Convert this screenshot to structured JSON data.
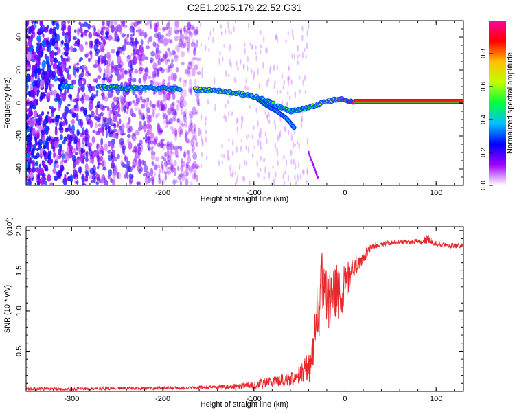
{
  "title": "C2E1.2025.179.22.52.G31",
  "chart_data": [
    {
      "type": "heatmap",
      "xlabel": "Height of straight line (km)",
      "ylabel": "Frequency (Hz)",
      "xlim": [
        -350,
        130
      ],
      "ylim": [
        -50,
        50
      ],
      "xticks": [
        -300,
        -200,
        -100,
        0,
        100
      ],
      "yticks": [
        -40,
        -20,
        0,
        20,
        40
      ],
      "colorbar": {
        "label": "Normalized spectral amplitude",
        "range": [
          0,
          1
        ],
        "ticks": [
          "0.0",
          "0.2",
          "0.4",
          "0.6",
          "0.8"
        ],
        "colors": [
          "#ffffff",
          "#a000ff",
          "#0000ff",
          "#00c0ff",
          "#00ff40",
          "#c0ff00",
          "#ffc000",
          "#ff0000",
          "#ff00a0"
        ]
      },
      "ridge": {
        "x": [
          -310,
          -300,
          -270,
          -240,
          -210,
          -180,
          -160,
          -140,
          -120,
          -100,
          -85,
          -70,
          -60,
          -50,
          -40,
          -30,
          -20,
          -10,
          0,
          10,
          130
        ],
        "y": [
          10,
          10,
          9.5,
          9,
          9,
          8.5,
          8,
          7.5,
          6,
          4,
          1,
          -3,
          -5,
          -4,
          -3,
          -1,
          1,
          2,
          2,
          1,
          1
        ],
        "amplitude": [
          0.45,
          0.4,
          0.6,
          0.55,
          0.5,
          0.45,
          0.6,
          0.55,
          0.55,
          0.5,
          0.5,
          0.5,
          0.45,
          0.5,
          0.55,
          0.6,
          0.7,
          0.7,
          0.85,
          0.95,
          0.95
        ]
      },
      "branch": {
        "x": [
          -95,
          -85,
          -75,
          -65,
          -60,
          -56
        ],
        "y": [
          2,
          -2,
          -5,
          -9,
          -12,
          -15
        ],
        "amplitude": [
          0.5,
          0.5,
          0.45,
          0.4,
          0.4,
          0.35
        ]
      },
      "faint_segment": {
        "x": [
          -40,
          -30
        ],
        "y": [
          -30,
          -45
        ],
        "amplitude": [
          0.12,
          0.1
        ]
      },
      "noise_region": {
        "x_start": -350,
        "x_end": -160,
        "y_range": [
          -50,
          50
        ],
        "amplitude": [
          0.05,
          0.35
        ]
      }
    },
    {
      "type": "line",
      "xlabel": "Height of straight line (km)",
      "ylabel": "SNR (10 * v/v)",
      "y_multiplier": "(x10",
      "y_multiplier_exp": "4",
      "y_multiplier_close": ")",
      "xlim": [
        -350,
        130
      ],
      "ylim": [
        0,
        2.05
      ],
      "xticks": [
        -300,
        -200,
        -100,
        0,
        100
      ],
      "yticks": [
        "0.5",
        "1.0",
        "1.5",
        "2.0"
      ],
      "series": [
        {
          "color": "#e8282c",
          "x": [
            -350,
            -300,
            -250,
            -200,
            -160,
            -120,
            -100,
            -80,
            -60,
            -50,
            -40,
            -35,
            -30,
            -25,
            -20,
            -15,
            -10,
            -5,
            0,
            5,
            10,
            15,
            20,
            25,
            30,
            40,
            50,
            60,
            70,
            80,
            85,
            90,
            95,
            100,
            110,
            120,
            130
          ],
          "y": [
            0.03,
            0.03,
            0.04,
            0.04,
            0.05,
            0.06,
            0.08,
            0.12,
            0.15,
            0.2,
            0.3,
            0.5,
            1.0,
            1.3,
            1.15,
            1.1,
            1.25,
            1.15,
            1.35,
            1.45,
            1.55,
            1.6,
            1.65,
            1.75,
            1.8,
            1.83,
            1.85,
            1.86,
            1.86,
            1.87,
            1.85,
            1.9,
            1.86,
            1.84,
            1.82,
            1.81,
            1.81
          ],
          "noise": [
            0.02,
            0.02,
            0.02,
            0.02,
            0.02,
            0.03,
            0.05,
            0.08,
            0.08,
            0.1,
            0.2,
            0.3,
            0.4,
            0.45,
            0.35,
            0.35,
            0.35,
            0.3,
            0.25,
            0.2,
            0.15,
            0.1,
            0.08,
            0.06,
            0.04,
            0.03,
            0.03,
            0.03,
            0.03,
            0.03,
            0.04,
            0.08,
            0.04,
            0.03,
            0.03,
            0.03,
            0.03
          ]
        }
      ]
    }
  ]
}
